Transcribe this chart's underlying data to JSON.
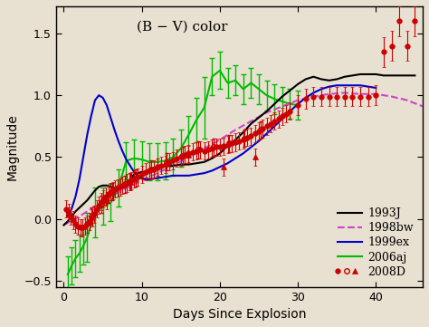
{
  "title": "(B − V) color",
  "xlabel": "Days Since Explosion",
  "ylabel": "Magnitude",
  "xlim": [
    -1,
    46
  ],
  "ylim": [
    -0.55,
    1.72
  ],
  "background_color": "#e8e0d0",
  "sn1993J": {
    "x": [
      0.0,
      0.5,
      1.0,
      1.5,
      2.0,
      2.5,
      3.0,
      3.5,
      4.0,
      4.5,
      5.0,
      5.5,
      6.0,
      6.5,
      7.0,
      7.5,
      8.0,
      8.5,
      9.0,
      9.5,
      10.0,
      10.5,
      11.0,
      11.5,
      12.0,
      12.5,
      13.0,
      14.0,
      15.0,
      16.0,
      17.0,
      18.0,
      19.0,
      20.0,
      21.0,
      22.0,
      23.0,
      24.0,
      25.0,
      26.0,
      27.0,
      28.0,
      29.0,
      30.0,
      31.0,
      32.0,
      33.0,
      34.0,
      35.0,
      36.0,
      37.0,
      38.0,
      39.0,
      40.0,
      41.0,
      42.0,
      43.0,
      44.0,
      45.0
    ],
    "y": [
      -0.05,
      -0.02,
      0.02,
      0.06,
      0.09,
      0.12,
      0.15,
      0.19,
      0.23,
      0.26,
      0.27,
      0.27,
      0.26,
      0.25,
      0.24,
      0.26,
      0.28,
      0.32,
      0.36,
      0.37,
      0.38,
      0.38,
      0.4,
      0.41,
      0.42,
      0.43,
      0.43,
      0.43,
      0.44,
      0.44,
      0.45,
      0.46,
      0.49,
      0.53,
      0.59,
      0.64,
      0.7,
      0.77,
      0.82,
      0.87,
      0.93,
      0.99,
      1.04,
      1.09,
      1.13,
      1.15,
      1.13,
      1.12,
      1.13,
      1.15,
      1.16,
      1.17,
      1.17,
      1.17,
      1.16,
      1.16,
      1.16,
      1.16,
      1.16
    ],
    "color": "#000000",
    "linestyle": "-",
    "linewidth": 1.5
  },
  "sn1998bw": {
    "x": [
      0.0,
      2.0,
      4.0,
      6.0,
      8.0,
      10.0,
      12.0,
      14.0,
      16.0,
      18.0,
      20.0,
      22.0,
      24.0,
      26.0,
      28.0,
      30.0,
      32.0,
      34.0,
      36.0,
      38.0,
      40.0,
      42.0,
      44.0,
      46.0
    ],
    "y": [
      -0.05,
      0.02,
      0.1,
      0.18,
      0.25,
      0.31,
      0.37,
      0.43,
      0.5,
      0.57,
      0.64,
      0.72,
      0.79,
      0.86,
      0.91,
      0.96,
      0.99,
      1.01,
      1.02,
      1.01,
      1.01,
      0.99,
      0.96,
      0.91
    ],
    "color": "#cc44cc",
    "linestyle": "--",
    "linewidth": 1.5
  },
  "sn1999ex": {
    "x": [
      0.5,
      1.0,
      1.5,
      2.0,
      2.5,
      3.0,
      3.5,
      4.0,
      4.5,
      5.0,
      5.5,
      6.0,
      6.5,
      7.0,
      7.5,
      8.0,
      8.5,
      9.0,
      9.5,
      10.0,
      10.5,
      11.0,
      12.0,
      13.0,
      14.0,
      15.0,
      16.0,
      17.0,
      18.0,
      19.0,
      20.0,
      21.0,
      22.0,
      23.0,
      24.0,
      25.0,
      26.0,
      27.0,
      28.0,
      29.0,
      30.0,
      31.0,
      32.0,
      33.0,
      34.0,
      35.0,
      36.0,
      37.0,
      38.0,
      39.0,
      40.0
    ],
    "y": [
      0.02,
      0.08,
      0.18,
      0.32,
      0.5,
      0.68,
      0.83,
      0.96,
      1.0,
      0.98,
      0.92,
      0.82,
      0.72,
      0.63,
      0.55,
      0.48,
      0.43,
      0.38,
      0.35,
      0.33,
      0.32,
      0.32,
      0.33,
      0.34,
      0.35,
      0.35,
      0.35,
      0.36,
      0.37,
      0.39,
      0.42,
      0.45,
      0.49,
      0.53,
      0.58,
      0.63,
      0.69,
      0.75,
      0.81,
      0.87,
      0.93,
      0.98,
      1.02,
      1.05,
      1.07,
      1.08,
      1.08,
      1.08,
      1.08,
      1.07,
      1.06
    ],
    "color": "#0000cc",
    "linestyle": "-",
    "linewidth": 1.5
  },
  "sn2006aj": {
    "x": [
      0.5,
      1.0,
      1.5,
      2.0,
      2.5,
      3.0,
      4.0,
      5.0,
      6.0,
      7.0,
      8.0,
      9.0,
      10.0,
      11.0,
      12.0,
      13.0,
      14.0,
      15.0,
      16.0,
      17.0,
      18.0,
      19.0,
      20.0,
      21.0,
      22.0,
      23.0,
      24.0,
      25.0,
      26.0,
      27.0,
      28.0,
      29.0,
      30.0
    ],
    "y": [
      -0.45,
      -0.38,
      -0.32,
      -0.28,
      -0.22,
      -0.15,
      0.05,
      0.1,
      0.13,
      0.25,
      0.47,
      0.49,
      0.48,
      0.46,
      0.46,
      0.47,
      0.5,
      0.57,
      0.68,
      0.8,
      0.9,
      1.15,
      1.2,
      1.1,
      1.12,
      1.05,
      1.1,
      1.05,
      1.0,
      0.97,
      0.95,
      0.93,
      0.92
    ],
    "yerr": [
      0.15,
      0.15,
      0.15,
      0.15,
      0.15,
      0.2,
      0.2,
      0.15,
      0.15,
      0.15,
      0.15,
      0.15,
      0.15,
      0.15,
      0.15,
      0.15,
      0.15,
      0.15,
      0.15,
      0.18,
      0.25,
      0.15,
      0.15,
      0.12,
      0.12,
      0.12,
      0.12,
      0.12,
      0.12,
      0.12,
      0.12,
      0.12,
      0.12
    ],
    "color": "#00bb00",
    "linestyle": "-",
    "linewidth": 1.5
  },
  "sn2008D_filled": {
    "x": [
      0.3,
      0.6,
      0.9,
      1.2,
      1.5,
      1.8,
      2.1,
      2.4,
      2.7,
      3.0,
      3.3,
      3.6,
      3.9,
      4.2,
      4.5,
      4.8,
      5.1,
      5.4,
      5.7,
      6.0,
      6.3,
      6.6,
      6.9,
      7.2,
      7.5,
      7.8,
      8.1,
      8.4,
      8.7,
      9.0,
      9.5,
      10.0,
      10.5,
      11.0,
      11.5,
      12.0,
      12.5,
      13.0,
      13.5,
      14.0,
      14.5,
      15.0,
      15.5,
      16.0,
      16.5,
      17.0,
      17.5,
      18.0,
      18.5,
      19.0,
      19.5,
      20.0,
      20.5,
      21.0,
      21.5,
      22.0,
      22.5,
      23.0,
      23.5,
      24.0,
      24.5,
      25.0,
      25.5,
      26.0,
      26.5,
      27.0,
      27.5,
      28.0,
      28.5,
      29.0,
      30.0,
      31.0,
      32.0,
      33.0,
      34.0,
      35.0,
      36.0,
      37.0,
      38.0,
      39.0,
      40.0,
      41.0,
      42.0,
      43.0,
      44.0,
      45.0
    ],
    "y": [
      0.08,
      0.05,
      0.02,
      -0.01,
      -0.04,
      -0.06,
      -0.07,
      -0.07,
      -0.06,
      -0.04,
      -0.02,
      0.01,
      0.04,
      0.08,
      0.11,
      0.14,
      0.16,
      0.18,
      0.2,
      0.22,
      0.23,
      0.24,
      0.25,
      0.26,
      0.27,
      0.28,
      0.29,
      0.3,
      0.31,
      0.32,
      0.34,
      0.36,
      0.38,
      0.39,
      0.4,
      0.42,
      0.43,
      0.44,
      0.46,
      0.47,
      0.49,
      0.5,
      0.52,
      0.53,
      0.54,
      0.55,
      0.56,
      0.55,
      0.56,
      0.57,
      0.58,
      0.58,
      0.59,
      0.6,
      0.61,
      0.62,
      0.63,
      0.64,
      0.66,
      0.67,
      0.69,
      0.71,
      0.73,
      0.75,
      0.77,
      0.79,
      0.81,
      0.83,
      0.85,
      0.87,
      0.92,
      0.97,
      0.99,
      0.99,
      0.99,
      0.99,
      0.99,
      0.99,
      0.99,
      0.99,
      1.0,
      1.35,
      1.4,
      1.6,
      1.4,
      1.6
    ],
    "yerr": [
      0.07,
      0.07,
      0.07,
      0.07,
      0.07,
      0.07,
      0.07,
      0.07,
      0.07,
      0.07,
      0.07,
      0.07,
      0.07,
      0.07,
      0.07,
      0.07,
      0.07,
      0.07,
      0.07,
      0.07,
      0.07,
      0.07,
      0.07,
      0.07,
      0.07,
      0.07,
      0.07,
      0.07,
      0.07,
      0.07,
      0.07,
      0.07,
      0.07,
      0.07,
      0.07,
      0.07,
      0.07,
      0.07,
      0.07,
      0.07,
      0.07,
      0.07,
      0.07,
      0.07,
      0.07,
      0.07,
      0.07,
      0.07,
      0.07,
      0.07,
      0.07,
      0.07,
      0.07,
      0.07,
      0.07,
      0.07,
      0.07,
      0.07,
      0.07,
      0.07,
      0.07,
      0.07,
      0.07,
      0.07,
      0.07,
      0.07,
      0.07,
      0.07,
      0.07,
      0.07,
      0.08,
      0.08,
      0.08,
      0.08,
      0.08,
      0.08,
      0.08,
      0.08,
      0.08,
      0.08,
      0.08,
      0.12,
      0.12,
      0.12,
      0.12,
      0.12
    ],
    "color": "#cc0000",
    "marker": "o",
    "markersize": 4
  },
  "sn2008D_open": {
    "x": [
      3.5,
      4.8,
      6.2,
      7.8,
      9.2,
      11.2,
      13.2,
      15.2,
      17.2,
      19.2,
      21.2,
      23.2,
      25.2
    ],
    "y": [
      0.02,
      0.12,
      0.22,
      0.28,
      0.33,
      0.4,
      0.46,
      0.51,
      0.56,
      0.58,
      0.61,
      0.65,
      0.72
    ],
    "yerr": [
      0.07,
      0.07,
      0.07,
      0.07,
      0.07,
      0.07,
      0.07,
      0.07,
      0.07,
      0.07,
      0.07,
      0.07,
      0.07
    ],
    "color": "#cc0000",
    "marker": "o",
    "markersize": 4,
    "fillstyle": "none"
  },
  "sn2008D_triangle": {
    "x": [
      5.5,
      8.5,
      12.0,
      16.0,
      20.5,
      24.5
    ],
    "y": [
      0.15,
      0.3,
      0.42,
      0.52,
      0.42,
      0.5
    ],
    "yerr": [
      0.07,
      0.07,
      0.07,
      0.07,
      0.07,
      0.07
    ],
    "color": "#cc0000",
    "marker": "^",
    "markersize": 4
  },
  "legend": {
    "labels": [
      "1993J",
      "1998bw",
      "1999ex",
      "2006aj",
      "2008D"
    ],
    "colors": [
      "#000000",
      "#cc44cc",
      "#0000cc",
      "#00bb00",
      "#cc0000"
    ],
    "linestyles": [
      "-",
      "--",
      "-",
      "-",
      "none"
    ],
    "linewidths": [
      1.5,
      1.5,
      1.5,
      1.5,
      0
    ],
    "fontsize": 9,
    "frameon": false
  }
}
